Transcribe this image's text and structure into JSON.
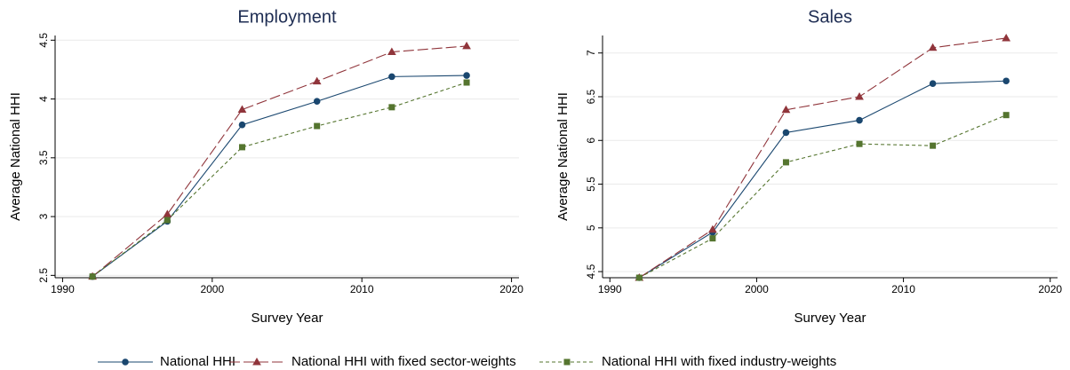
{
  "chart_data": [
    {
      "type": "line",
      "title": "Employment",
      "x_label": "Survey Year",
      "y_label": "Average National HHI",
      "x": [
        1992,
        1997,
        2002,
        2007,
        2012,
        2017
      ],
      "series": [
        {
          "name": "National HHI",
          "color": "#1a476f",
          "marker": "circle",
          "dash": "none",
          "values": [
            2.49,
            2.96,
            3.78,
            3.98,
            4.19,
            4.2
          ]
        },
        {
          "name": "National HHI with fixed sector-weights",
          "color": "#90353b",
          "marker": "triangle",
          "dash": "12,4",
          "values": [
            2.49,
            3.02,
            3.91,
            4.15,
            4.4,
            4.45
          ]
        },
        {
          "name": "National HHI with fixed industry-weights",
          "color": "#55752f",
          "marker": "square",
          "dash": "4,3",
          "values": [
            2.49,
            2.97,
            3.59,
            3.77,
            3.93,
            4.14
          ]
        }
      ],
      "xlim": [
        1989.5,
        2020.5
      ],
      "xticks": [
        1990,
        2000,
        2010,
        2020
      ],
      "ylim": [
        2.48,
        4.54
      ],
      "yticks": [
        2.5,
        3,
        3.5,
        4,
        4.5
      ],
      "grid": true
    },
    {
      "type": "line",
      "title": "Sales",
      "x_label": "Survey Year",
      "y_label": "Average National HHI",
      "x": [
        1992,
        1997,
        2002,
        2007,
        2012,
        2017
      ],
      "series": [
        {
          "color": "#1a476f",
          "marker": "circle",
          "dash": "none",
          "values": [
            4.43,
            4.95,
            6.09,
            6.23,
            6.65,
            6.68
          ]
        },
        {
          "color": "#90353b",
          "marker": "triangle",
          "dash": "12,4",
          "values": [
            4.43,
            4.98,
            6.35,
            6.5,
            7.06,
            7.17
          ]
        },
        {
          "color": "#55752f",
          "marker": "square",
          "dash": "4,3",
          "values": [
            4.43,
            4.88,
            5.75,
            5.96,
            5.94,
            6.29
          ]
        }
      ],
      "xlim": [
        1989.5,
        2020.5
      ],
      "xticks": [
        1990,
        2000,
        2010,
        2020
      ],
      "ylim": [
        4.43,
        7.2
      ],
      "yticks": [
        4.5,
        5,
        5.5,
        6,
        6.5,
        7
      ],
      "grid": true
    }
  ]
}
